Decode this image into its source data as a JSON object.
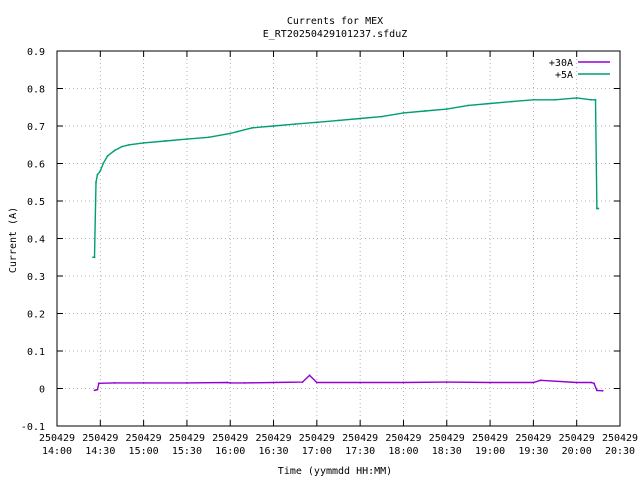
{
  "chart_data": {
    "type": "line",
    "title": "Currents for MEX",
    "subtitle": "E_RT20250429101237.sfduZ",
    "xlabel": "Time (yymmdd HH:MM)",
    "ylabel": "Current (A)",
    "xlim": [
      "2025-04-29 14:00",
      "2025-04-29 20:30"
    ],
    "ylim": [
      -0.1,
      0.9
    ],
    "yticks": [
      -0.1,
      0,
      0.1,
      0.2,
      0.3,
      0.4,
      0.5,
      0.6,
      0.7,
      0.8,
      0.9
    ],
    "ytick_labels": [
      "-0.1",
      "0",
      "0.1",
      "0.2",
      "0.3",
      "0.4",
      "0.5",
      "0.6",
      "0.7",
      "0.8",
      "0.9"
    ],
    "xticks": [
      "2025-04-29 14:00",
      "2025-04-29 14:30",
      "2025-04-29 15:00",
      "2025-04-29 15:30",
      "2025-04-29 16:00",
      "2025-04-29 16:30",
      "2025-04-29 17:00",
      "2025-04-29 17:30",
      "2025-04-29 18:00",
      "2025-04-29 18:30",
      "2025-04-29 19:00",
      "2025-04-29 19:30",
      "2025-04-29 20:00",
      "2025-04-29 20:30"
    ],
    "xtick_labels": [
      [
        "250429",
        "14:00"
      ],
      [
        "250429",
        "14:30"
      ],
      [
        "250429",
        "15:00"
      ],
      [
        "250429",
        "15:30"
      ],
      [
        "250429",
        "16:00"
      ],
      [
        "250429",
        "16:30"
      ],
      [
        "250429",
        "17:00"
      ],
      [
        "250429",
        "17:30"
      ],
      [
        "250429",
        "18:00"
      ],
      [
        "250429",
        "18:30"
      ],
      [
        "250429",
        "19:00"
      ],
      [
        "250429",
        "19:30"
      ],
      [
        "250429",
        "20:00"
      ],
      [
        "250429",
        "20:30"
      ]
    ],
    "grid": true,
    "legend_position": "top-right",
    "series": [
      {
        "name": "+30A",
        "color": "#9400d3",
        "x": [
          "2025-04-29 14:26",
          "2025-04-29 14:27",
          "2025-04-29 14:28",
          "2025-04-29 14:29",
          "2025-04-29 14:40",
          "2025-04-29 15:00",
          "2025-04-29 15:30",
          "2025-04-29 15:58",
          "2025-04-29 16:00",
          "2025-04-29 16:10",
          "2025-04-29 16:30",
          "2025-04-29 16:50",
          "2025-04-29 16:55",
          "2025-04-29 17:00",
          "2025-04-29 17:30",
          "2025-04-29 18:00",
          "2025-04-29 18:30",
          "2025-04-29 19:00",
          "2025-04-29 19:30",
          "2025-04-29 19:35",
          "2025-04-29 20:00",
          "2025-04-29 20:10",
          "2025-04-29 20:12",
          "2025-04-29 20:14",
          "2025-04-29 20:18"
        ],
        "values": [
          -0.005,
          -0.004,
          -0.003,
          0.014,
          0.015,
          0.015,
          0.015,
          0.016,
          0.015,
          0.015,
          0.016,
          0.017,
          0.035,
          0.016,
          0.016,
          0.016,
          0.017,
          0.016,
          0.016,
          0.022,
          0.016,
          0.016,
          0.014,
          -0.005,
          -0.006
        ]
      },
      {
        "name": "+5A",
        "color": "#009e73",
        "x": [
          "2025-04-29 14:25",
          "2025-04-29 14:26",
          "2025-04-29 14:27",
          "2025-04-29 14:28",
          "2025-04-29 14:30",
          "2025-04-29 14:32",
          "2025-04-29 14:35",
          "2025-04-29 14:40",
          "2025-04-29 14:45",
          "2025-04-29 14:50",
          "2025-04-29 15:00",
          "2025-04-29 15:15",
          "2025-04-29 15:30",
          "2025-04-29 15:45",
          "2025-04-29 16:00",
          "2025-04-29 16:05",
          "2025-04-29 16:15",
          "2025-04-29 16:30",
          "2025-04-29 16:45",
          "2025-04-29 17:00",
          "2025-04-29 17:15",
          "2025-04-29 17:30",
          "2025-04-29 17:45",
          "2025-04-29 18:00",
          "2025-04-29 18:15",
          "2025-04-29 18:30",
          "2025-04-29 18:45",
          "2025-04-29 19:00",
          "2025-04-29 19:15",
          "2025-04-29 19:30",
          "2025-04-29 19:45",
          "2025-04-29 20:00",
          "2025-04-29 20:10",
          "2025-04-29 20:13",
          "2025-04-29 20:14",
          "2025-04-29 20:15"
        ],
        "values": [
          0.35,
          0.35,
          0.55,
          0.57,
          0.58,
          0.6,
          0.62,
          0.635,
          0.645,
          0.65,
          0.655,
          0.66,
          0.665,
          0.67,
          0.68,
          0.685,
          0.695,
          0.7,
          0.705,
          0.71,
          0.715,
          0.72,
          0.725,
          0.735,
          0.74,
          0.745,
          0.755,
          0.76,
          0.765,
          0.77,
          0.77,
          0.775,
          0.77,
          0.77,
          0.48,
          0.48
        ]
      }
    ]
  }
}
